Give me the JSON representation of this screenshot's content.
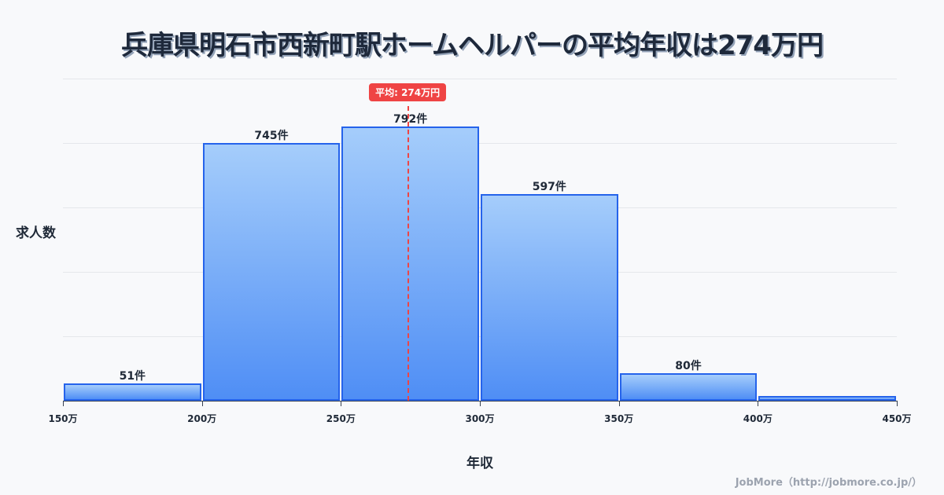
{
  "title": "兵庫県明石市西新町駅ホームヘルパーの平均年収は274万円",
  "y_axis_label": "求人数",
  "x_axis_label": "年収",
  "average_badge": "平均: 274万円",
  "credit": "JobMore（http://jobmore.co.jp/）",
  "colors": {
    "bar_fill_top": "#a5cdfb",
    "bar_fill_bottom": "#4f8ef5",
    "bar_border": "#2563eb",
    "average_line": "#ef4444",
    "background": "#f8f9fb"
  },
  "bars": [
    {
      "range": "150-200万",
      "value": 51,
      "label": "51件"
    },
    {
      "range": "200-250万",
      "value": 745,
      "label": "745件"
    },
    {
      "range": "250-300万",
      "value": 792,
      "label": "792件"
    },
    {
      "range": "300-350万",
      "value": 597,
      "label": "597件"
    },
    {
      "range": "350-400万",
      "value": 80,
      "label": "80件"
    },
    {
      "range": "400-450万",
      "value": 14,
      "label": ""
    }
  ],
  "ticks": [
    "150万",
    "200万",
    "250万",
    "300万",
    "350万",
    "400万",
    "450万"
  ],
  "chart_data": {
    "type": "bar",
    "title": "兵庫県明石市西新町駅ホームヘルパーの平均年収は274万円",
    "xlabel": "年収",
    "ylabel": "求人数",
    "categories": [
      "150-200万",
      "200-250万",
      "250-300万",
      "300-350万",
      "350-400万",
      "400-450万"
    ],
    "values": [
      51,
      745,
      792,
      597,
      80,
      14
    ],
    "x_ticks": [
      "150万",
      "200万",
      "250万",
      "300万",
      "350万",
      "400万",
      "450万"
    ],
    "annotations": [
      {
        "type": "vline",
        "x": 274,
        "label": "平均: 274万円",
        "color": "#ef4444",
        "style": "dashed"
      }
    ],
    "grid": true,
    "legend": null
  }
}
